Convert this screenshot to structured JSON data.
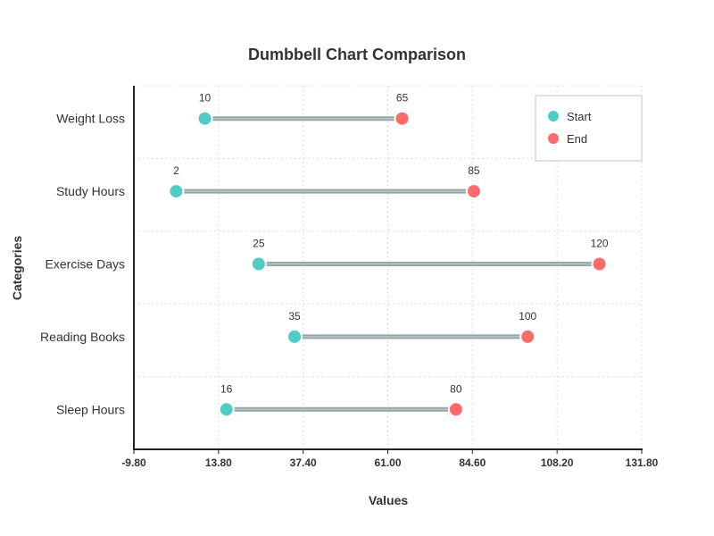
{
  "chart_data": {
    "type": "dumbbell",
    "title": "Dumbbell Chart Comparison",
    "xlabel": "Values",
    "ylabel": "Categories",
    "xlim": [
      -9.8,
      131.8
    ],
    "xticks": [
      "-9.80",
      "13.80",
      "37.40",
      "61.00",
      "84.60",
      "108.20",
      "131.80"
    ],
    "grid": true,
    "legend_position": "top-right",
    "categories": [
      "Weight Loss",
      "Study Hours",
      "Exercise Days",
      "Reading Books",
      "Sleep Hours"
    ],
    "series": [
      {
        "name": "Start",
        "color": "#4ecdc4",
        "values": [
          10,
          2,
          25,
          35,
          16
        ]
      },
      {
        "name": "End",
        "color": "#ff6b6b",
        "values": [
          65,
          85,
          120,
          100,
          80
        ]
      }
    ],
    "connector_color": "#95a5a6"
  }
}
